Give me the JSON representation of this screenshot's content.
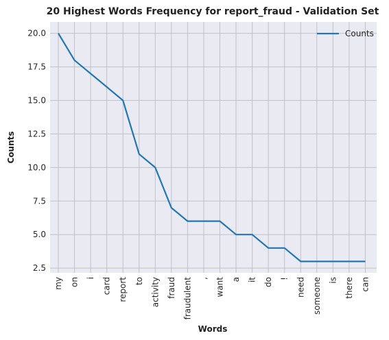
{
  "chart_data": {
    "type": "line",
    "title": "20 Highest Words Frequency for report_fraud - Validation Set",
    "xlabel": "Words",
    "ylabel": "Counts",
    "categories": [
      "my",
      "on",
      "i",
      "card",
      "report",
      "to",
      "activity",
      "fraud",
      "fraudulent",
      ",",
      "want",
      "a",
      "it",
      "do",
      "!",
      "need",
      "someone",
      "is",
      "there",
      "can"
    ],
    "series": [
      {
        "name": "Counts",
        "values": [
          20,
          18,
          17,
          16,
          15,
          11,
          10,
          7,
          6,
          6,
          6,
          5,
          5,
          4,
          4,
          3,
          3,
          3,
          3,
          3
        ]
      }
    ],
    "yticks": [
      "2.5",
      "5.0",
      "7.5",
      "10.0",
      "12.5",
      "15.0",
      "17.5",
      "20.0"
    ],
    "ylim": [
      2.15,
      20.85
    ],
    "grid": true,
    "legend": "top-right",
    "colors": {
      "line": "#1f77b4",
      "plot_bg": "#eaeaf2",
      "grid": "#c0c0c8"
    }
  }
}
